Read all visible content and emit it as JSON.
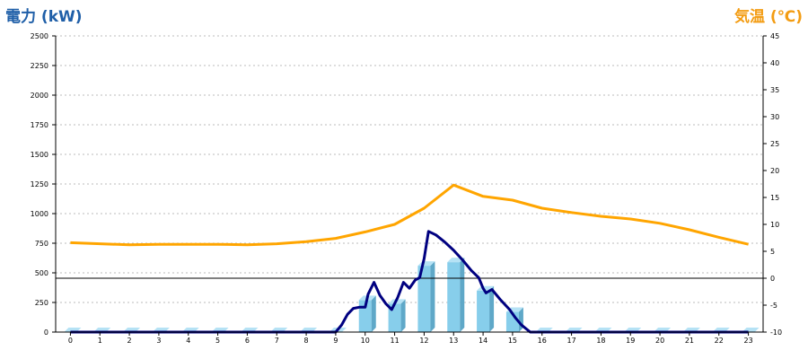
{
  "colors": {
    "power_title": "#1f5fa8",
    "temp_title": "#f39c12",
    "bar_front": "#87ceeb",
    "bar_top": "#b5e2f5",
    "bar_side": "#5fa8c8",
    "power_line": "#000080",
    "temp_line": "#ffa500",
    "grid": "#bbbbbb",
    "zero_line": "#000000"
  },
  "chart_data": {
    "type": "bar+line",
    "titles": {
      "left": "電力 (kW)",
      "right": "気温 (℃)"
    },
    "x": {
      "categories": [
        "0",
        "1",
        "2",
        "3",
        "4",
        "5",
        "6",
        "7",
        "8",
        "9",
        "10",
        "11",
        "12",
        "13",
        "14",
        "15",
        "16",
        "17",
        "18",
        "19",
        "20",
        "21",
        "22",
        "23"
      ]
    },
    "y_left": {
      "range": [
        0,
        2500
      ],
      "ticks": [
        "0",
        "250",
        "500",
        "750",
        "1000",
        "1250",
        "1500",
        "1750",
        "2000",
        "2250",
        "2500"
      ]
    },
    "y_right": {
      "range": [
        -10,
        45
      ],
      "ticks": [
        "-10",
        "-5",
        "0",
        "5",
        "10",
        "15",
        "20",
        "25",
        "30",
        "35",
        "40",
        "45"
      ],
      "zero_line": true
    },
    "grid": {
      "horizontal": true,
      "style": "dotted"
    },
    "series": [
      {
        "kind": "bar",
        "axis": "left",
        "values": [
          0,
          0,
          0,
          0,
          0,
          0,
          0,
          0,
          0,
          0,
          270,
          240,
          560,
          590,
          350,
          170,
          0,
          0,
          0,
          0,
          0,
          0,
          0,
          0
        ]
      },
      {
        "kind": "line",
        "axis": "left",
        "points": [
          [
            0,
            0
          ],
          [
            1,
            0
          ],
          [
            2,
            0
          ],
          [
            3,
            0
          ],
          [
            4,
            0
          ],
          [
            5,
            0
          ],
          [
            6,
            0
          ],
          [
            7,
            0
          ],
          [
            8,
            0
          ],
          [
            9,
            0
          ],
          [
            9.2,
            60
          ],
          [
            9.4,
            150
          ],
          [
            9.6,
            200
          ],
          [
            9.8,
            210
          ],
          [
            10,
            210
          ],
          [
            10.1,
            320
          ],
          [
            10.3,
            420
          ],
          [
            10.5,
            310
          ],
          [
            10.7,
            240
          ],
          [
            10.9,
            190
          ],
          [
            11.1,
            290
          ],
          [
            11.3,
            420
          ],
          [
            11.5,
            370
          ],
          [
            11.7,
            440
          ],
          [
            11.85,
            460
          ],
          [
            12,
            620
          ],
          [
            12.15,
            850
          ],
          [
            12.4,
            820
          ],
          [
            12.7,
            760
          ],
          [
            13,
            690
          ],
          [
            13.3,
            610
          ],
          [
            13.6,
            520
          ],
          [
            13.85,
            460
          ],
          [
            14,
            370
          ],
          [
            14.1,
            330
          ],
          [
            14.3,
            360
          ],
          [
            14.6,
            270
          ],
          [
            14.9,
            190
          ],
          [
            15.1,
            120
          ],
          [
            15.3,
            60
          ],
          [
            15.6,
            0
          ],
          [
            16,
            0
          ],
          [
            17,
            0
          ],
          [
            18,
            0
          ],
          [
            19,
            0
          ],
          [
            20,
            0
          ],
          [
            21,
            0
          ],
          [
            22,
            0
          ],
          [
            23,
            0
          ]
        ]
      },
      {
        "kind": "line",
        "axis": "right",
        "points": [
          [
            0,
            6.6
          ],
          [
            1,
            6.4
          ],
          [
            2,
            6.2
          ],
          [
            3,
            6.3
          ],
          [
            4,
            6.3
          ],
          [
            5,
            6.3
          ],
          [
            6,
            6.2
          ],
          [
            7,
            6.4
          ],
          [
            8,
            6.8
          ],
          [
            9,
            7.4
          ],
          [
            10,
            8.6
          ],
          [
            11,
            10
          ],
          [
            12,
            13
          ],
          [
            13,
            17.3
          ],
          [
            14,
            15.2
          ],
          [
            15,
            14.5
          ],
          [
            16,
            13
          ],
          [
            17,
            12.2
          ],
          [
            18,
            11.5
          ],
          [
            19,
            11
          ],
          [
            20,
            10.2
          ],
          [
            21,
            9
          ],
          [
            22,
            7.6
          ],
          [
            23,
            6.3
          ]
        ]
      }
    ]
  }
}
